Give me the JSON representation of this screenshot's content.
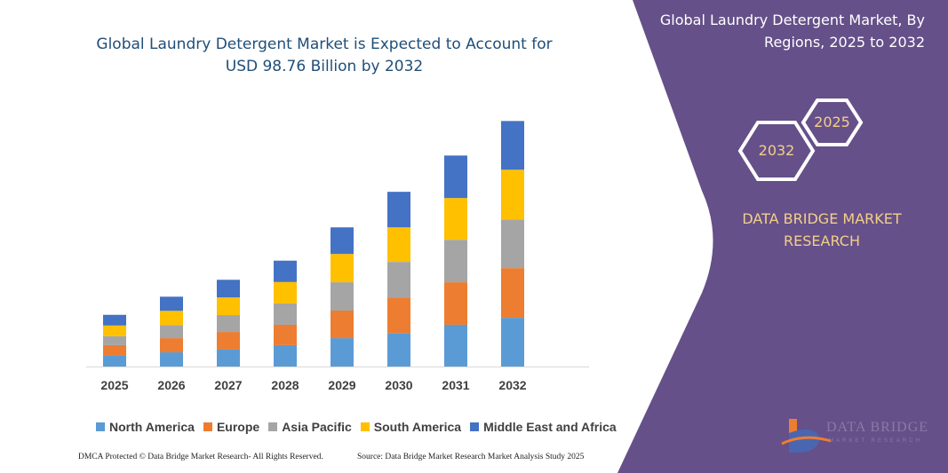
{
  "chart_data": {
    "type": "bar",
    "stacked": true,
    "title": "Global Laundry Detergent Market is Expected to Account for USD 98.76 Billion by 2032",
    "categories": [
      "2025",
      "2026",
      "2027",
      "2028",
      "2029",
      "2030",
      "2031",
      "2032"
    ],
    "series": [
      {
        "name": "North America",
        "color": "#5b9bd5",
        "values": [
          4.3,
          5.7,
          6.8,
          8.6,
          11.4,
          13.5,
          16.8,
          19.6
        ]
      },
      {
        "name": "Europe",
        "color": "#ed7d31",
        "values": [
          4.3,
          5.7,
          7.1,
          8.2,
          11.1,
          14.3,
          17.1,
          20.0
        ]
      },
      {
        "name": "Asia Pacific",
        "color": "#a5a5a5",
        "values": [
          3.6,
          5.3,
          6.8,
          8.6,
          11.4,
          14.3,
          17.1,
          19.6
        ]
      },
      {
        "name": "South America",
        "color": "#ffc000",
        "values": [
          4.3,
          5.7,
          7.1,
          8.6,
          11.4,
          13.9,
          16.8,
          20.0
        ]
      },
      {
        "name": "Middle East and Africa",
        "color": "#4472c4",
        "values": [
          4.3,
          5.7,
          7.1,
          8.6,
          10.7,
          14.3,
          17.1,
          19.6
        ]
      }
    ],
    "xlabel": "",
    "ylabel": "",
    "ylim": [
      0,
      100
    ],
    "grid": false,
    "legend": "bottom"
  },
  "footer": {
    "left": "DMCA Protected © Data Bridge Market Research- All Rights Reserved.",
    "right": "Source: Data Bridge Market Research Market Analysis Study 2025"
  },
  "panel": {
    "title": "Global Laundry Detergent Market, By Regions, 2025 to 2032",
    "hex_start": "2025",
    "hex_end": "2032",
    "brand": "DATA BRIDGE MARKET RESEARCH",
    "logo_text": "DATA BRIDGE",
    "logo_sub": "MARKET RESEARCH",
    "bg_color": "#655089",
    "accent_color": "#f3cf8a"
  }
}
